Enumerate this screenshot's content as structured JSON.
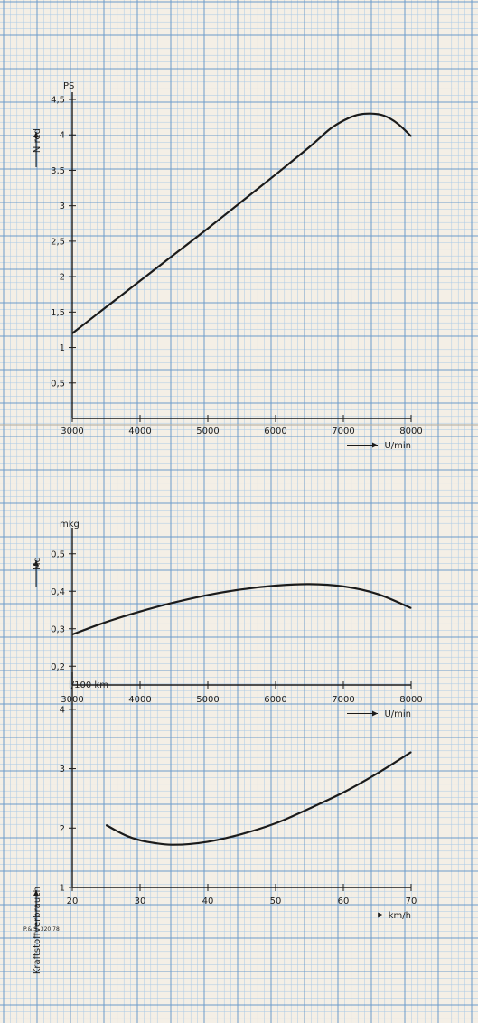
{
  "colors": {
    "paper": "#f4efe6",
    "grid_major": "#5d93c9",
    "grid_minor": "#9cc2e6",
    "ink": "#1b1b1b"
  },
  "footnote": "P.&.S. 320 78",
  "chart_data": [
    {
      "type": "line",
      "unit_label": "PS",
      "ylabel": "N red",
      "xlabel": "U/min",
      "xlim": [
        3000,
        8000
      ],
      "ylim": [
        0,
        4.5
      ],
      "x_ticks": [
        "3000",
        "4000",
        "5000",
        "6000",
        "7000",
        "8000"
      ],
      "y_ticks": [
        "0,5",
        "1",
        "1,5",
        "2",
        "2,5",
        "3",
        "3,5",
        "4",
        "4,5"
      ],
      "x_tick_values": [
        3000,
        4000,
        5000,
        6000,
        7000,
        8000
      ],
      "y_tick_values": [
        0.5,
        1,
        1.5,
        2,
        2.5,
        3,
        3.5,
        4,
        4.5
      ],
      "grid": true,
      "series": [
        {
          "x": [
            3000,
            3500,
            4000,
            4500,
            5000,
            5500,
            6000,
            6500,
            6800,
            7000,
            7200,
            7400,
            7600,
            7800,
            8000
          ],
          "values": [
            1.2,
            1.57,
            1.94,
            2.31,
            2.68,
            3.06,
            3.44,
            3.83,
            4.08,
            4.2,
            4.28,
            4.3,
            4.27,
            4.16,
            3.98
          ]
        }
      ]
    },
    {
      "type": "line",
      "unit_label": "mkg",
      "ylabel": "Md",
      "xlabel": "U/min",
      "xlim": [
        3000,
        8000
      ],
      "ylim": [
        0.15,
        0.55
      ],
      "x_ticks": [
        "3000",
        "4000",
        "5000",
        "6000",
        "7000",
        "8000"
      ],
      "y_ticks": [
        "0,2",
        "0,3",
        "0,4",
        "0,5"
      ],
      "x_tick_values": [
        3000,
        4000,
        5000,
        6000,
        7000,
        8000
      ],
      "y_tick_values": [
        0.2,
        0.3,
        0.4,
        0.5
      ],
      "grid": true,
      "series": [
        {
          "x": [
            3000,
            3500,
            4000,
            4500,
            5000,
            5500,
            6000,
            6500,
            7000,
            7500,
            8000
          ],
          "values": [
            0.285,
            0.318,
            0.346,
            0.37,
            0.39,
            0.405,
            0.415,
            0.419,
            0.413,
            0.393,
            0.355
          ]
        }
      ]
    },
    {
      "type": "line",
      "unit_label": "l/100 km",
      "ylabel": "Kraftstoffverbrauch",
      "xlabel": "km/h",
      "xlim": [
        20,
        70
      ],
      "ylim": [
        1,
        4.5
      ],
      "x_ticks": [
        "20",
        "30",
        "40",
        "50",
        "60",
        "70"
      ],
      "y_ticks": [
        "1",
        "2",
        "3",
        "4"
      ],
      "x_tick_values": [
        20,
        30,
        40,
        50,
        60,
        70
      ],
      "y_tick_values": [
        1,
        2,
        3,
        4
      ],
      "grid": true,
      "series": [
        {
          "x": [
            25,
            28,
            31,
            35,
            40,
            45,
            50,
            55,
            60,
            65,
            70
          ],
          "values": [
            2.05,
            1.87,
            1.77,
            1.72,
            1.77,
            1.9,
            2.08,
            2.33,
            2.6,
            2.92,
            3.28
          ]
        }
      ]
    }
  ]
}
